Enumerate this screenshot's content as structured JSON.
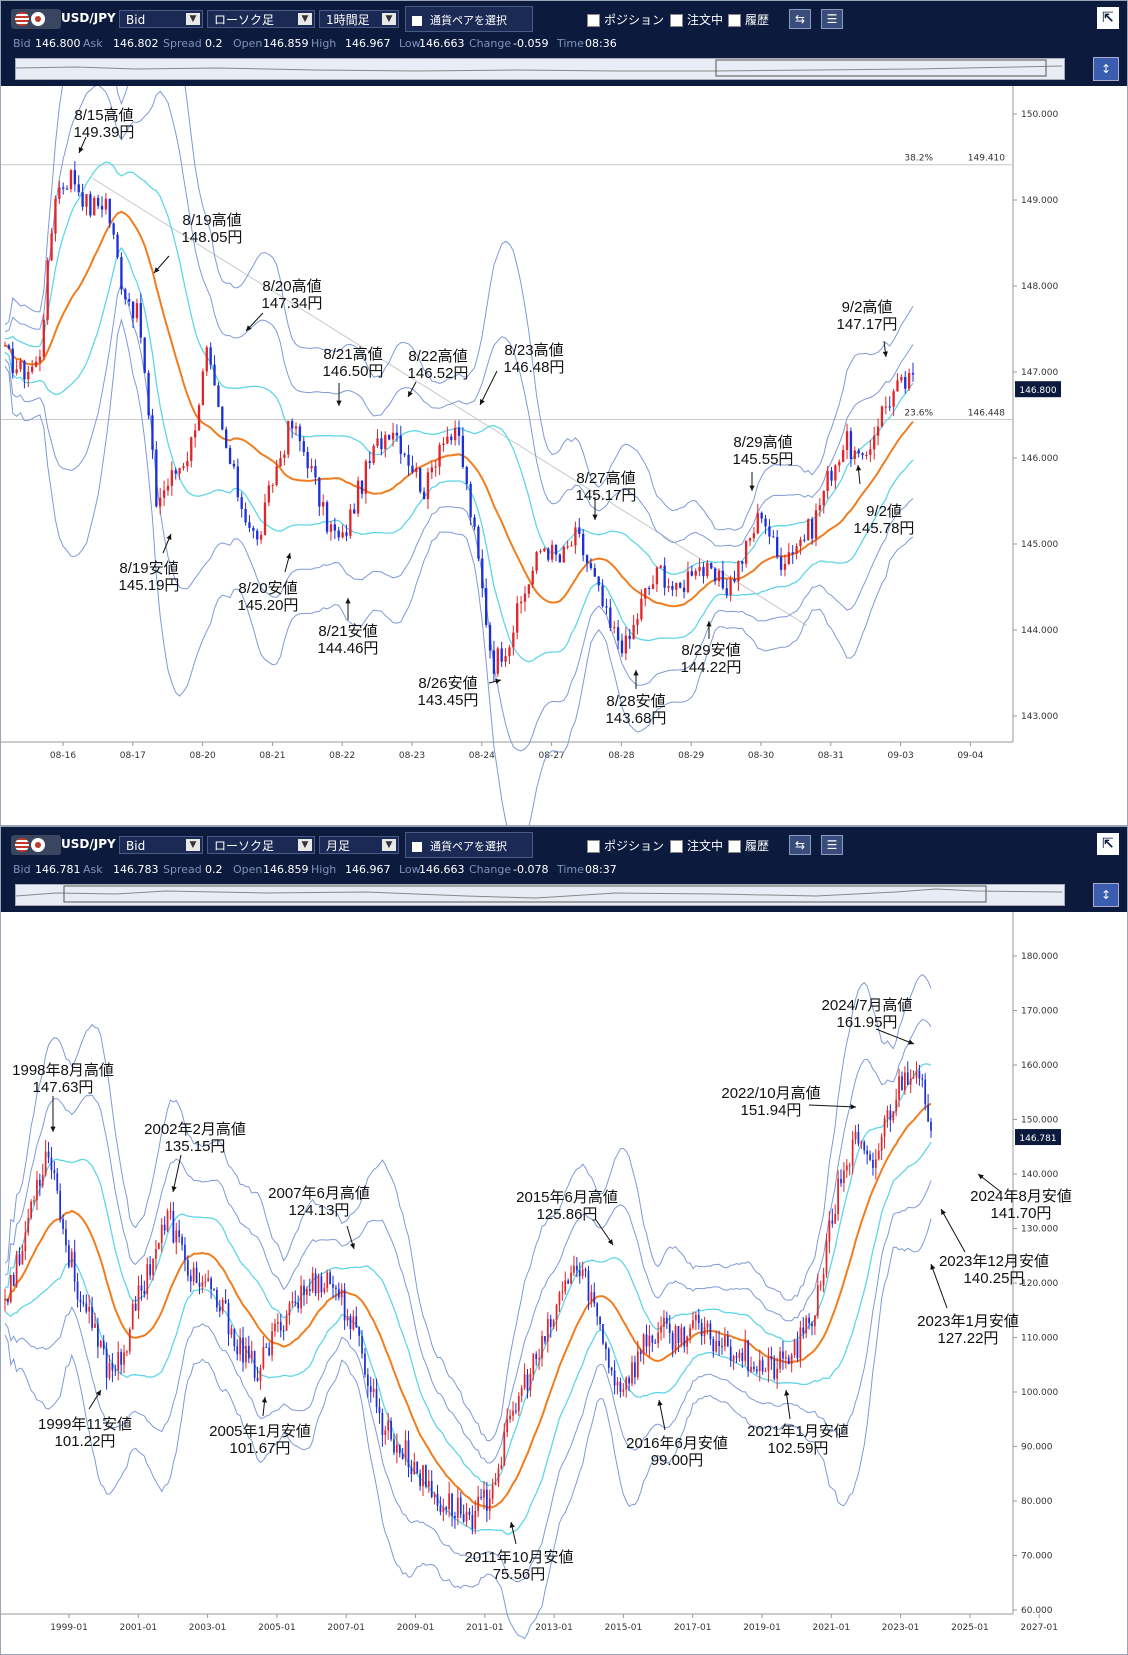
{
  "panels": [
    {
      "toolbar": {
        "symbol": "USD/JPY",
        "price_type": "Bid",
        "chart_type": "ローソク足",
        "timeframe": "1時間足",
        "pair_select": "通貨ペアを選択",
        "position": "ポジション",
        "orders": "注文中",
        "history": "履歴"
      },
      "quote": [
        {
          "label": "Bid",
          "value": "146.800"
        },
        {
          "label": "Ask",
          "value": "146.802"
        },
        {
          "label": "Spread",
          "value": "0.2"
        },
        {
          "label": "Open",
          "value": "146.859"
        },
        {
          "label": "High",
          "value": "146.967"
        },
        {
          "label": "Low",
          "value": "146.663"
        },
        {
          "label": "Change",
          "value": "-0.059"
        },
        {
          "label": "Time",
          "value": "08:36"
        }
      ],
      "current_price": "146.800",
      "levels": [
        {
          "label": "38.2%",
          "value": "149.410",
          "price": 149.41
        },
        {
          "label": "23.6%",
          "value": "146.448",
          "price": 146.448
        }
      ],
      "x_ticks": [
        "08-16",
        "08-17",
        "08-20",
        "08-21",
        "08-22",
        "08-23",
        "08-24",
        "08-27",
        "08-28",
        "08-29",
        "08-30",
        "08-31",
        "09-03",
        "09-04"
      ],
      "y_ticks": [
        "150.000",
        "149.000",
        "148.000",
        "147.000",
        "146.000",
        "145.000",
        "144.000",
        "143.000"
      ],
      "annotations": [
        {
          "l1": "8/15高値",
          "l2": "149.39円"
        },
        {
          "l1": "8/19高値",
          "l2": "148.05円"
        },
        {
          "l1": "8/20高値",
          "l2": "147.34円"
        },
        {
          "l1": "8/21高値",
          "l2": "146.50円"
        },
        {
          "l1": "8/22高値",
          "l2": "146.52円"
        },
        {
          "l1": "8/23高値",
          "l2": "146.48円"
        },
        {
          "l1": "8/27高値",
          "l2": "145.17円"
        },
        {
          "l1": "8/29高値",
          "l2": "145.55円"
        },
        {
          "l1": "9/2高値",
          "l2": "147.17円"
        },
        {
          "l1": "9/2値",
          "l2": "145.78円"
        },
        {
          "l1": "8/19安値",
          "l2": "145.19円"
        },
        {
          "l1": "8/20安値",
          "l2": "145.20円"
        },
        {
          "l1": "8/21安値",
          "l2": "144.46円"
        },
        {
          "l1": "8/26安値",
          "l2": "143.45円"
        },
        {
          "l1": "8/28安値",
          "l2": "143.68円"
        },
        {
          "l1": "8/29安値",
          "l2": "144.22円"
        }
      ]
    },
    {
      "toolbar": {
        "symbol": "USD/JPY",
        "price_type": "Bid",
        "chart_type": "ローソク足",
        "timeframe": "月足",
        "pair_select": "通貨ペアを選択",
        "position": "ポジション",
        "orders": "注文中",
        "history": "履歴"
      },
      "quote": [
        {
          "label": "Bid",
          "value": "146.781"
        },
        {
          "label": "Ask",
          "value": "146.783"
        },
        {
          "label": "Spread",
          "value": "0.2"
        },
        {
          "label": "Open",
          "value": "146.859"
        },
        {
          "label": "High",
          "value": "146.967"
        },
        {
          "label": "Low",
          "value": "146.663"
        },
        {
          "label": "Change",
          "value": "-0.078"
        },
        {
          "label": "Time",
          "value": "08:37"
        }
      ],
      "current_price": "146.781",
      "levels": [],
      "x_ticks": [
        "1999-01",
        "2001-01",
        "2003-01",
        "2005-01",
        "2007-01",
        "2009-01",
        "2011-01",
        "2013-01",
        "2015-01",
        "2017-01",
        "2019-01",
        "2021-01",
        "2023-01",
        "2025-01",
        "2027-01"
      ],
      "y_ticks": [
        "180.000",
        "170.000",
        "160.000",
        "150.000",
        "140.000",
        "130.000",
        "120.000",
        "110.000",
        "100.000",
        "90.000",
        "80.000",
        "70.000",
        "60.000"
      ],
      "annotations": [
        {
          "l1": "1998年8月高値",
          "l2": "147.63円"
        },
        {
          "l1": "2002年2月高値",
          "l2": "135.15円"
        },
        {
          "l1": "2007年6月高値",
          "l2": "124.13円"
        },
        {
          "l1": "2015年6月高値",
          "l2": "125.86円"
        },
        {
          "l1": "2022/10月高値",
          "l2": "151.94円"
        },
        {
          "l1": "2024/7月高値",
          "l2": "161.95円"
        },
        {
          "l1": "1999年11安値",
          "l2": "101.22円"
        },
        {
          "l1": "2005年1月安値",
          "l2": "101.67円"
        },
        {
          "l1": "2011年10月安値",
          "l2": "75.56円"
        },
        {
          "l1": "2016年6月安値",
          "l2": "99.00円"
        },
        {
          "l1": "2021年1月安値",
          "l2": "102.59円"
        },
        {
          "l1": "2023年1月安値",
          "l2": "127.22円"
        },
        {
          "l1": "2023年12月安値",
          "l2": "140.25円"
        },
        {
          "l1": "2024年8月安値",
          "l2": "141.70円"
        }
      ]
    }
  ],
  "colors": {
    "toolbar_bg": "#0b1a3d",
    "candle_up": "#e0252b",
    "candle_down": "#1c2fd8",
    "ma": "#f07d1f",
    "band_inner": "#5fd6e8",
    "band_outer": "#7f9ad6"
  }
}
